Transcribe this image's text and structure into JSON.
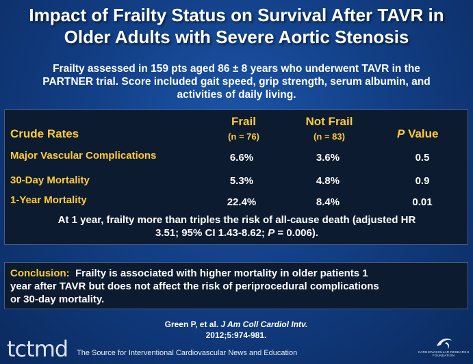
{
  "title_line1": "Impact of Frailty Status on Survival After TAVR in",
  "title_line2": "Older Adults with Severe Aortic Stenosis",
  "subtitle_line1": "Frailty assessed in 159 pts aged 86 ± 8 years who underwent TAVR in the",
  "subtitle_line2": "PARTNER trial. Score included gait speed, grip strength, serum albumin, and",
  "subtitle_line3": "activities of daily living.",
  "table": {
    "header_label": "Crude Rates",
    "col_frail": "Frail",
    "col_frail_n": "(n = 76)",
    "col_notfrail": "Not Frail",
    "col_notfrail_n": "(n = 83)",
    "col_p_italic": "P",
    "col_p_rest": " Value",
    "rows": [
      {
        "label": "Major Vascular Complications",
        "frail": "6.6%",
        "notfrail": "3.6%",
        "p": "0.5"
      },
      {
        "label": "30-Day Mortality",
        "frail": "5.3%",
        "notfrail": "4.8%",
        "p": "0.9"
      },
      {
        "label": "1-Year Mortality",
        "frail": "22.4%",
        "notfrail": "8.4%",
        "p": "0.01"
      }
    ],
    "footnote_line1": "At 1 year, frailty more than triples the risk of all-cause death (adjusted HR",
    "footnote_line2_a": "3.51; 95% CI 1.43-8.62; ",
    "footnote_line2_p": "P",
    "footnote_line2_b": " = 0.006)."
  },
  "conclusion": {
    "label": "Conclusion:",
    "text_line1": "Frailty is associated with higher mortality in older patients 1",
    "text_line2": "year after TAVR but does not affect the risk of periprocedural complications",
    "text_line3": "or 30-day mortality."
  },
  "citation": {
    "author": "Green P, et al. ",
    "journal": "J Am Coll Cardiol Intv.",
    "ref": "2012;5:974-981."
  },
  "footer": {
    "logo": "tctmd",
    "tagline": "The Source for Interventional Cardiovascular News and Education",
    "foundation_text": "CARDIOVASCULAR RESEARCH FOUNDATION"
  },
  "colors": {
    "accent": "#ffcc33",
    "background": "#123f86",
    "box": "#0d1b30"
  }
}
